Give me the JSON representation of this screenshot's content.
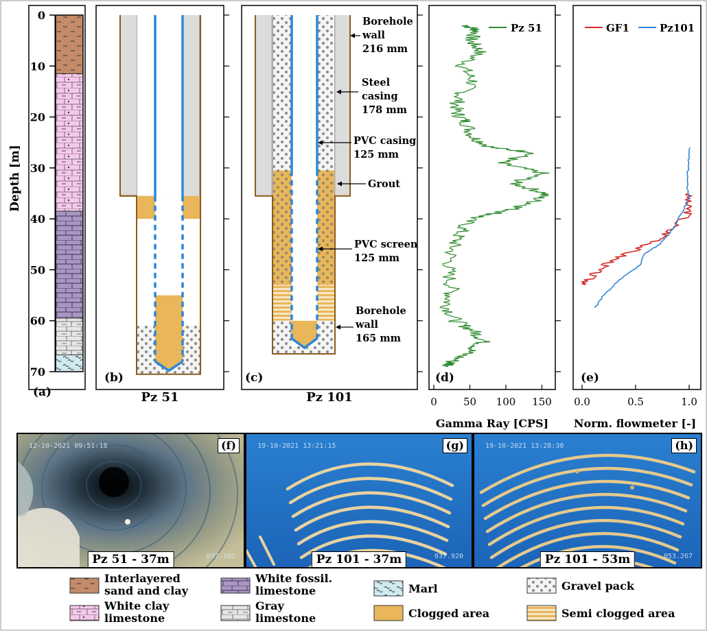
{
  "axis": {
    "depth_label": "Depth [m]",
    "depth_ticks": [
      "0",
      "10",
      "20",
      "30",
      "40",
      "50",
      "60",
      "70"
    ],
    "depth_range": [
      0,
      70
    ]
  },
  "lithology_column": {
    "label": "(a)",
    "layers": [
      {
        "name": "Interlayered sand and clay",
        "from": 0,
        "to": 11.5
      },
      {
        "name": "White clay limestone",
        "from": 11.5,
        "to": 38.5
      },
      {
        "name": "White fossil. limestone",
        "from": 38.5,
        "to": 59.5
      },
      {
        "name": "Gray limestone",
        "from": 59.5,
        "to": 66.7
      },
      {
        "name": "Marl",
        "from": 66.7,
        "to": 70
      }
    ]
  },
  "panel_b": {
    "label": "(b)",
    "caption": "Pz 51",
    "bottom_depth": 70.5,
    "grout_bottom": 35.5,
    "clog_top": 35.5,
    "clog_bottom": 40,
    "inner_clog_top": 55,
    "gravel_top": 61
  },
  "panel_c": {
    "label": "(c)",
    "caption": "Pz 101",
    "annotations": [
      {
        "text": [
          "Borehole",
          "wall",
          "216 mm"
        ]
      },
      {
        "text": [
          "Steel",
          "casing",
          "178 mm"
        ]
      },
      {
        "text": [
          "PVC casing",
          "125 mm"
        ]
      },
      {
        "text": [
          "Grout"
        ]
      },
      {
        "text": [
          "PVC screen",
          "125 mm"
        ]
      },
      {
        "text": [
          "Borehole",
          "wall",
          "165 mm"
        ]
      }
    ]
  },
  "panel_d": {
    "label": "(d)",
    "legend": "Pz 51",
    "xlabel": "Gamma Ray [CPS]",
    "xticks": [
      "0",
      "50",
      "100",
      "150"
    ],
    "xlim": [
      0,
      160
    ],
    "color": "#2e8b2e"
  },
  "panel_e": {
    "label": "(e)",
    "legend": [
      {
        "name": "GF1",
        "color": "#d42a2a"
      },
      {
        "name": "Pz101",
        "color": "#2f86d6"
      }
    ],
    "xlabel": "Norm. flowmeter [-]",
    "xticks": [
      "0.0",
      "0.5",
      "1.0"
    ],
    "xlim": [
      0,
      1.1
    ]
  },
  "chart_data": [
    {
      "type": "line",
      "series": [
        {
          "name": "Pz 51",
          "x_y_pairs": [
            [
              45,
              2
            ],
            [
              60,
              3
            ],
            [
              50,
              5
            ],
            [
              65,
              7
            ],
            [
              40,
              10
            ],
            [
              55,
              13
            ],
            [
              35,
              16
            ],
            [
              30,
              19
            ],
            [
              45,
              21
            ],
            [
              55,
              24
            ],
            [
              80,
              26
            ],
            [
              140,
              27
            ],
            [
              90,
              29
            ],
            [
              150,
              31
            ],
            [
              110,
              33
            ],
            [
              155,
              35
            ],
            [
              135,
              37
            ],
            [
              100,
              38.5
            ],
            [
              50,
              40
            ],
            [
              35,
              43
            ],
            [
              25,
              46
            ],
            [
              20,
              50
            ],
            [
              25,
              54
            ],
            [
              18,
              57
            ],
            [
              30,
              60
            ],
            [
              55,
              62
            ],
            [
              70,
              64
            ],
            [
              50,
              66
            ],
            [
              25,
              68
            ],
            [
              20,
              69
            ]
          ]
        }
      ],
      "xlabel": "Gamma Ray [CPS]",
      "xlim": [
        0,
        160
      ],
      "ylim": [
        0,
        70
      ]
    },
    {
      "type": "line",
      "series": [
        {
          "name": "GF1",
          "x_y_pairs": [
            [
              1.0,
              35
            ],
            [
              0.98,
              37
            ],
            [
              1.0,
              39
            ],
            [
              0.82,
              42
            ],
            [
              0.75,
              44
            ],
            [
              0.5,
              46
            ],
            [
              0.3,
              48
            ],
            [
              0.15,
              50
            ],
            [
              0.05,
              52
            ],
            [
              0.03,
              53
            ]
          ]
        },
        {
          "name": "Pz101",
          "x_y_pairs": [
            [
              1.0,
              26
            ],
            [
              0.99,
              30
            ],
            [
              0.98,
              33
            ],
            [
              1.0,
              36
            ],
            [
              0.95,
              38
            ],
            [
              0.85,
              42
            ],
            [
              0.72,
              45
            ],
            [
              0.58,
              47
            ],
            [
              0.55,
              49
            ],
            [
              0.35,
              52
            ],
            [
              0.2,
              55
            ],
            [
              0.12,
              57.5
            ]
          ]
        }
      ],
      "xlabel": "Norm. flowmeter [-]",
      "xlim": [
        0,
        1.1
      ],
      "ylim": [
        0,
        70
      ]
    }
  ],
  "photos": [
    {
      "label": "(f)",
      "caption": "Pz 51 - 37m",
      "stamp": "12-10-2021 09:51:18",
      "counter": "037.102"
    },
    {
      "label": "(g)",
      "caption": "Pz 101 - 37m",
      "stamp": "19-10-2021 13:21:15",
      "counter": "037.920"
    },
    {
      "label": "(h)",
      "caption": "Pz 101 - 53m",
      "stamp": "19-10-2021 13:28:30",
      "counter": "053.267"
    }
  ],
  "legend": [
    {
      "key": "sandclay",
      "text": [
        "Interlayered",
        "sand and clay"
      ]
    },
    {
      "key": "fossil",
      "text": [
        "White fossil.",
        "limestone"
      ]
    },
    {
      "key": "marl",
      "text": [
        "Marl"
      ]
    },
    {
      "key": "gravel",
      "text": [
        "Gravel pack"
      ]
    },
    {
      "key": "clay",
      "text": [
        "White clay",
        "limestone"
      ]
    },
    {
      "key": "gray",
      "text": [
        "Gray",
        "limestone"
      ]
    },
    {
      "key": "clogged",
      "text": [
        "Clogged area"
      ]
    },
    {
      "key": "semiclog",
      "text": [
        "Semi clogged area"
      ]
    }
  ]
}
